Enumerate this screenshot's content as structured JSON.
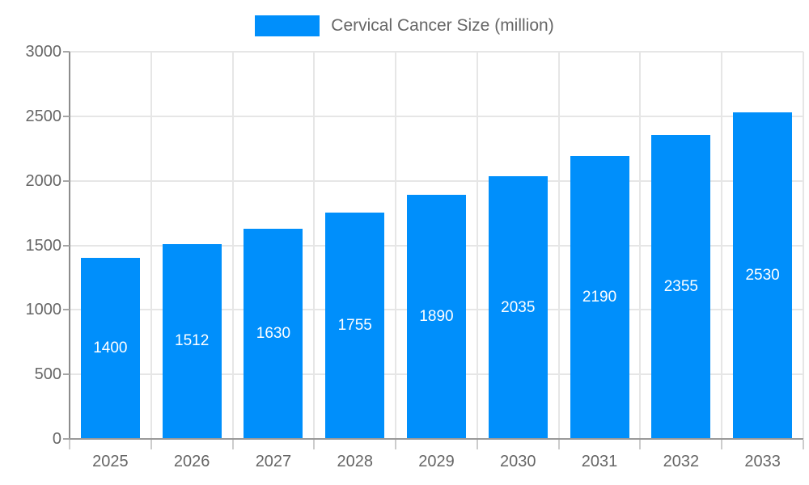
{
  "legend": {
    "label": "Cervical Cancer Size (million)",
    "swatch_color": "#008FFB"
  },
  "colors": {
    "bar": "#008FFB",
    "grid": "#e6e6e6",
    "axis": "#999999",
    "axis_text": "#666666",
    "bar_label_text": "#ffffff",
    "background": "#ffffff"
  },
  "chart_data": {
    "type": "bar",
    "title": "Cervical Cancer Size (million)",
    "categories": [
      "2025",
      "2026",
      "2027",
      "2028",
      "2029",
      "2030",
      "2031",
      "2032",
      "2033"
    ],
    "series": [
      {
        "name": "Cervical Cancer Size (million)",
        "values": [
          1400,
          1512,
          1630,
          1755,
          1890,
          2035,
          2190,
          2355,
          2530
        ]
      }
    ],
    "value_labels": [
      "1400",
      "1512",
      "1630",
      "1755",
      "1890",
      "2035",
      "2190",
      "2355",
      "2530"
    ],
    "xlabel": "",
    "ylabel": "",
    "ylim": [
      0,
      3000
    ],
    "yticks": [
      0,
      500,
      1000,
      1500,
      2000,
      2500,
      3000
    ],
    "grid": true,
    "legend_position": "top",
    "bar_color": "#008FFB"
  }
}
